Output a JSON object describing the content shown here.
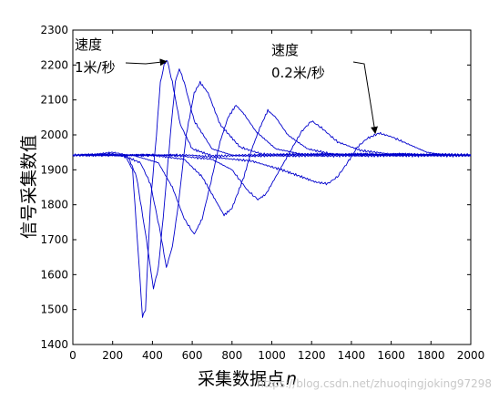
{
  "chart_data": {
    "type": "line",
    "xlabel": "采集数据点",
    "xlabel_var": "n",
    "ylabel": "信号采集数值",
    "xlim": [
      0,
      2000
    ],
    "ylim": [
      1400,
      2300
    ],
    "xticks": [
      0,
      200,
      400,
      600,
      800,
      1000,
      1200,
      1400,
      1600,
      1800,
      2000
    ],
    "yticks": [
      1400,
      1500,
      1600,
      1700,
      1800,
      1900,
      2000,
      2100,
      2200,
      2300
    ],
    "grid": false,
    "line_color": "#0000cc",
    "baseline": 1942,
    "annotations": [
      {
        "lines": [
          "速度",
          "1米/秒"
        ],
        "arrow_to": [
          470,
          2210
        ]
      },
      {
        "lines": [
          "速度",
          "0.2米/秒"
        ],
        "arrow_to": [
          1520,
          2005
        ]
      }
    ],
    "series": [
      {
        "points": [
          [
            0,
            1942
          ],
          [
            100,
            1944
          ],
          [
            200,
            1950
          ],
          [
            260,
            1944
          ],
          [
            300,
            1900
          ],
          [
            330,
            1650
          ],
          [
            350,
            1480
          ],
          [
            365,
            1500
          ],
          [
            390,
            1800
          ],
          [
            420,
            2000
          ],
          [
            440,
            2150
          ],
          [
            460,
            2205
          ],
          [
            475,
            2212
          ],
          [
            500,
            2150
          ],
          [
            540,
            2030
          ],
          [
            600,
            1960
          ],
          [
            700,
            1940
          ],
          [
            2000,
            1940
          ]
        ]
      },
      {
        "points": [
          [
            0,
            1942
          ],
          [
            200,
            1945
          ],
          [
            280,
            1935
          ],
          [
            320,
            1880
          ],
          [
            370,
            1700
          ],
          [
            405,
            1560
          ],
          [
            430,
            1620
          ],
          [
            460,
            1800
          ],
          [
            490,
            2000
          ],
          [
            515,
            2150
          ],
          [
            535,
            2190
          ],
          [
            560,
            2150
          ],
          [
            610,
            2040
          ],
          [
            700,
            1960
          ],
          [
            800,
            1942
          ],
          [
            2000,
            1942
          ]
        ]
      },
      {
        "points": [
          [
            0,
            1942
          ],
          [
            250,
            1942
          ],
          [
            340,
            1920
          ],
          [
            390,
            1860
          ],
          [
            440,
            1720
          ],
          [
            470,
            1620
          ],
          [
            500,
            1680
          ],
          [
            530,
            1800
          ],
          [
            570,
            2000
          ],
          [
            610,
            2120
          ],
          [
            640,
            2150
          ],
          [
            680,
            2120
          ],
          [
            740,
            2030
          ],
          [
            840,
            1965
          ],
          [
            950,
            1945
          ],
          [
            2000,
            1943
          ]
        ]
      },
      {
        "points": [
          [
            0,
            1942
          ],
          [
            300,
            1942
          ],
          [
            430,
            1920
          ],
          [
            500,
            1850
          ],
          [
            560,
            1760
          ],
          [
            610,
            1715
          ],
          [
            650,
            1760
          ],
          [
            700,
            1880
          ],
          [
            740,
            1980
          ],
          [
            780,
            2050
          ],
          [
            820,
            2085
          ],
          [
            860,
            2060
          ],
          [
            920,
            2010
          ],
          [
            1020,
            1960
          ],
          [
            1150,
            1945
          ],
          [
            2000,
            1943
          ]
        ]
      },
      {
        "points": [
          [
            0,
            1942
          ],
          [
            400,
            1942
          ],
          [
            560,
            1930
          ],
          [
            650,
            1880
          ],
          [
            720,
            1810
          ],
          [
            760,
            1770
          ],
          [
            800,
            1790
          ],
          [
            860,
            1880
          ],
          [
            900,
            1960
          ],
          [
            940,
            2020
          ],
          [
            980,
            2070
          ],
          [
            1020,
            2050
          ],
          [
            1080,
            2000
          ],
          [
            1180,
            1960
          ],
          [
            1300,
            1945
          ],
          [
            2000,
            1943
          ]
        ]
      },
      {
        "points": [
          [
            0,
            1942
          ],
          [
            500,
            1942
          ],
          [
            700,
            1930
          ],
          [
            800,
            1900
          ],
          [
            880,
            1840
          ],
          [
            930,
            1815
          ],
          [
            970,
            1830
          ],
          [
            1030,
            1890
          ],
          [
            1100,
            1960
          ],
          [
            1150,
            2010
          ],
          [
            1200,
            2040
          ],
          [
            1250,
            2020
          ],
          [
            1330,
            1980
          ],
          [
            1450,
            1955
          ],
          [
            1600,
            1945
          ],
          [
            2000,
            1943
          ]
        ]
      },
      {
        "points": [
          [
            0,
            1942
          ],
          [
            600,
            1942
          ],
          [
            900,
            1925
          ],
          [
            1050,
            1900
          ],
          [
            1150,
            1880
          ],
          [
            1220,
            1865
          ],
          [
            1280,
            1860
          ],
          [
            1330,
            1880
          ],
          [
            1380,
            1920
          ],
          [
            1430,
            1965
          ],
          [
            1480,
            1990
          ],
          [
            1540,
            2005
          ],
          [
            1600,
            1995
          ],
          [
            1680,
            1975
          ],
          [
            1780,
            1950
          ],
          [
            1880,
            1942
          ],
          [
            2000,
            1943
          ]
        ]
      }
    ]
  },
  "watermark": "https://blog.csdn.net/zhuoqingjoking97298"
}
